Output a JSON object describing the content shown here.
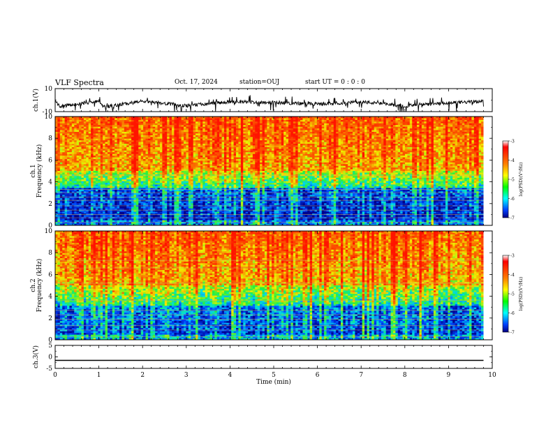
{
  "header": {
    "title": "VLF Spectra",
    "date": "Oct. 17, 2024",
    "station": "station=OUJ",
    "start": "start  UT  =   0 : 0  : 0"
  },
  "chart_data": [
    {
      "type": "line",
      "name": "ch1-waveform",
      "ylabel": "ch.1(V)",
      "ylim": [
        -10,
        10
      ],
      "yticks": [
        "10",
        "-10"
      ],
      "xlim": [
        0,
        10
      ],
      "x": [
        0.0,
        0.05,
        0.1,
        0.5,
        1.0,
        1.1,
        2.0,
        3.0,
        3.5,
        4.0,
        5.0,
        6.0,
        7.0,
        8.0,
        9.0,
        9.8
      ],
      "y": [
        0.0,
        -3.0,
        -5.5,
        -3.5,
        -1.0,
        -6.0,
        -1.0,
        -5.0,
        -3.0,
        -1.5,
        -2.0,
        -3.5,
        -1.5,
        -5.0,
        -2.5,
        -1.0
      ]
    },
    {
      "type": "heatmap",
      "name": "ch1-spectrogram",
      "ylabel": "ch.1\nFrequency (kHz)",
      "ylim": [
        0,
        10
      ],
      "yticks": [
        "0",
        "2",
        "4",
        "6",
        "8",
        "10"
      ],
      "xlim": [
        0,
        9.8
      ],
      "colorbar": {
        "label": "log(PSD)(V²/Hz)",
        "range": [
          -7,
          -3
        ],
        "ticks": [
          "-3",
          "-4",
          "-5",
          "-6",
          "-7"
        ]
      }
    },
    {
      "type": "heatmap",
      "name": "ch2-spectrogram",
      "ylabel": "ch.2\nFrequency (kHz)",
      "ylim": [
        0,
        10
      ],
      "yticks": [
        "0",
        "2",
        "4",
        "6",
        "8",
        "10"
      ],
      "xlim": [
        0,
        9.8
      ],
      "colorbar": {
        "label": "log(PSD)(V²/Hz)",
        "range": [
          -7,
          -3
        ],
        "ticks": [
          "-3",
          "-4",
          "-5",
          "-6",
          "-7"
        ]
      }
    },
    {
      "type": "line",
      "name": "ch3-waveform",
      "ylabel": "ch.3(V)",
      "ylim": [
        -5,
        5
      ],
      "yticks": [
        "5",
        "0",
        "-5"
      ],
      "xlim": [
        0,
        10
      ],
      "x": [
        0,
        9.8
      ],
      "y": [
        -1.5,
        -1.5
      ]
    }
  ],
  "xaxis": {
    "label": "Time (min)",
    "range": [
      0,
      10
    ],
    "ticks": [
      "0",
      "1",
      "2",
      "3",
      "4",
      "5",
      "6",
      "7",
      "8",
      "9",
      "10"
    ]
  },
  "colors": {
    "spectrogram_scale": [
      "#0000a0",
      "#0050ff",
      "#00e0e0",
      "#30f030",
      "#f0f000",
      "#f06000",
      "#ff2000"
    ],
    "line": "#000000"
  }
}
